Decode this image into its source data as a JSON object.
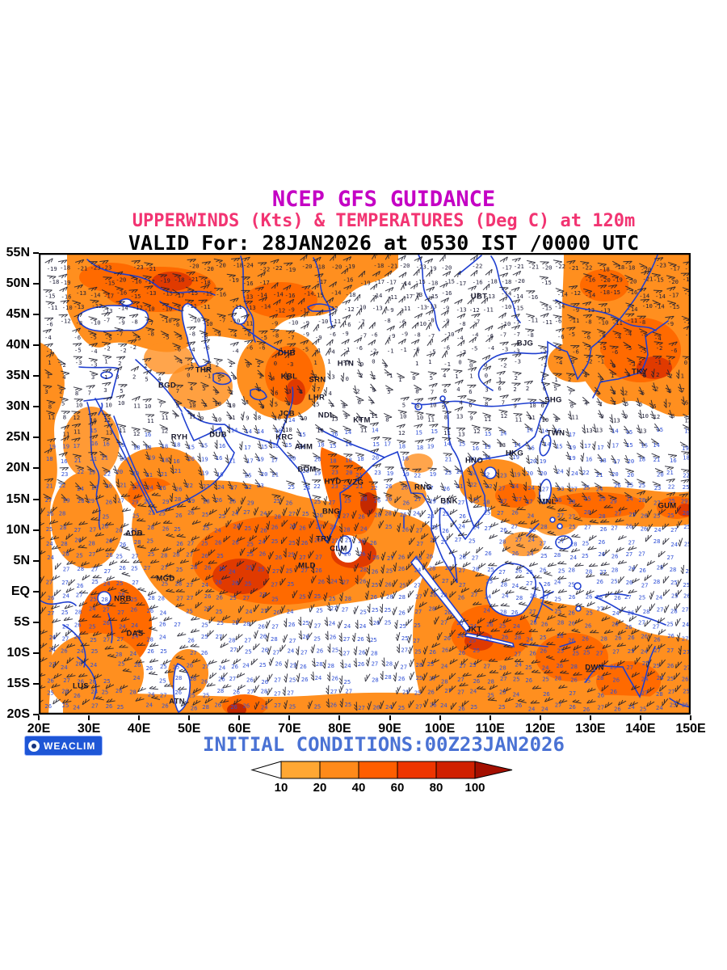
{
  "header": {
    "title": "NCEP GFS GUIDANCE",
    "subtitle": "UPPERWINDS (Kts) & TEMPERATURES (Deg C) at 120m",
    "valid_line": "VALID For: 28JAN2026 at 0530 IST /0000 UTC"
  },
  "footer": {
    "logo_label": "WEACLIM",
    "initial_conditions": "INITIAL CONDITIONS:00Z23JAN2026"
  },
  "colors": {
    "title": "#C400C4",
    "subtitle": "#F23472",
    "valid": "#000000",
    "footer_text": "#4A72D4",
    "coastline": "#1F3FD0",
    "badge_bg": "#1E56D6",
    "shade_light": "#FFAE45",
    "shade_mid": "#FF8F1F",
    "shade_deep": "#FF6A00",
    "shade_dark": "#E03A00",
    "shade_darkest": "#C42900"
  },
  "axes": {
    "lat_labels": [
      "55N",
      "50N",
      "45N",
      "40N",
      "35N",
      "30N",
      "25N",
      "20N",
      "15N",
      "10N",
      "5N",
      "EQ",
      "5S",
      "10S",
      "15S",
      "20S"
    ],
    "lon_labels": [
      "20E",
      "30E",
      "40E",
      "50E",
      "60E",
      "70E",
      "80E",
      "90E",
      "100E",
      "110E",
      "120E",
      "130E",
      "140E",
      "150E"
    ]
  },
  "colorbar": {
    "tick_labels": [
      "10",
      "20",
      "40",
      "60",
      "80",
      "100"
    ],
    "segment_colors": [
      "#FFFFFF",
      "#FFA733",
      "#FF8A1A",
      "#FF5E00",
      "#EE3500",
      "#D02000",
      "#A40F00"
    ]
  },
  "chart_data": {
    "type": "heatmap",
    "title": "NCEP GFS GUIDANCE",
    "subtitle": "UPPERWINDS (Kts) & TEMPERATURES (Deg C) at 120m",
    "valid": "28JAN2026 at 0530 IST /0000 UTC",
    "initial_conditions": "00Z23JAN2026",
    "model": "NCEP GFS",
    "region": {
      "lon_min": "20E",
      "lon_max": "150E",
      "lat_min": "20S",
      "lat_max": "55N"
    },
    "lon_ticks": [
      "20E",
      "30E",
      "40E",
      "50E",
      "60E",
      "70E",
      "80E",
      "90E",
      "100E",
      "110E",
      "120E",
      "130E",
      "140E",
      "150E"
    ],
    "lat_ticks": [
      "55N",
      "50N",
      "45N",
      "40N",
      "35N",
      "30N",
      "25N",
      "20N",
      "15N",
      "10N",
      "5N",
      "EQ",
      "5S",
      "10S",
      "15S",
      "20S"
    ],
    "shading_variable": "wind speed (Kts)",
    "shading_levels": [
      10,
      20,
      40,
      60,
      80,
      100
    ],
    "overlay_variable": "temperature (Deg C) at wind barb points",
    "temperature_pattern": "approx -30..-14 C near 55N decreasing gradient to 24..28 C in tropics and southern hemisphere",
    "stations": [
      {
        "label": "UBT",
        "x": 0.675,
        "y": 0.095
      },
      {
        "label": "BJG",
        "x": 0.746,
        "y": 0.196
      },
      {
        "label": "TKY",
        "x": 0.922,
        "y": 0.257
      },
      {
        "label": "SHG",
        "x": 0.789,
        "y": 0.319
      },
      {
        "label": "TWN",
        "x": 0.793,
        "y": 0.39
      },
      {
        "label": "HKG",
        "x": 0.73,
        "y": 0.434
      },
      {
        "label": "HNO",
        "x": 0.668,
        "y": 0.45
      },
      {
        "label": "MNL",
        "x": 0.781,
        "y": 0.539
      },
      {
        "label": "GUM",
        "x": 0.964,
        "y": 0.548
      },
      {
        "label": "DHB",
        "x": 0.38,
        "y": 0.217
      },
      {
        "label": "HTN",
        "x": 0.471,
        "y": 0.24
      },
      {
        "label": "THR",
        "x": 0.253,
        "y": 0.254
      },
      {
        "label": "KBL",
        "x": 0.384,
        "y": 0.268
      },
      {
        "label": "SRN",
        "x": 0.428,
        "y": 0.275
      },
      {
        "label": "BGD",
        "x": 0.197,
        "y": 0.287
      },
      {
        "label": "LHR",
        "x": 0.426,
        "y": 0.313
      },
      {
        "label": "JCB",
        "x": 0.38,
        "y": 0.349
      },
      {
        "label": "NDL",
        "x": 0.441,
        "y": 0.352
      },
      {
        "label": "KTM",
        "x": 0.496,
        "y": 0.363
      },
      {
        "label": "RYH",
        "x": 0.216,
        "y": 0.399
      },
      {
        "label": "DUB",
        "x": 0.275,
        "y": 0.394
      },
      {
        "label": "KRC",
        "x": 0.377,
        "y": 0.399
      },
      {
        "label": "AHM",
        "x": 0.406,
        "y": 0.42
      },
      {
        "label": "BOM",
        "x": 0.411,
        "y": 0.469
      },
      {
        "label": "HYD",
        "x": 0.451,
        "y": 0.496
      },
      {
        "label": "VZG",
        "x": 0.486,
        "y": 0.497
      },
      {
        "label": "RNG",
        "x": 0.59,
        "y": 0.508
      },
      {
        "label": "BNK",
        "x": 0.63,
        "y": 0.538
      },
      {
        "label": "BNG",
        "x": 0.449,
        "y": 0.56
      },
      {
        "label": "TRV",
        "x": 0.438,
        "y": 0.62
      },
      {
        "label": "CLM",
        "x": 0.46,
        "y": 0.641
      },
      {
        "label": "MLD",
        "x": 0.412,
        "y": 0.677
      },
      {
        "label": "ADB",
        "x": 0.146,
        "y": 0.608
      },
      {
        "label": "MGD",
        "x": 0.195,
        "y": 0.706
      },
      {
        "label": "NRB",
        "x": 0.129,
        "y": 0.75
      },
      {
        "label": "DAS",
        "x": 0.148,
        "y": 0.824
      },
      {
        "label": "JKT",
        "x": 0.668,
        "y": 0.816
      },
      {
        "label": "DWN",
        "x": 0.852,
        "y": 0.898
      },
      {
        "label": "LUS",
        "x": 0.064,
        "y": 0.938
      },
      {
        "label": "ATN",
        "x": 0.212,
        "y": 0.972
      }
    ]
  }
}
